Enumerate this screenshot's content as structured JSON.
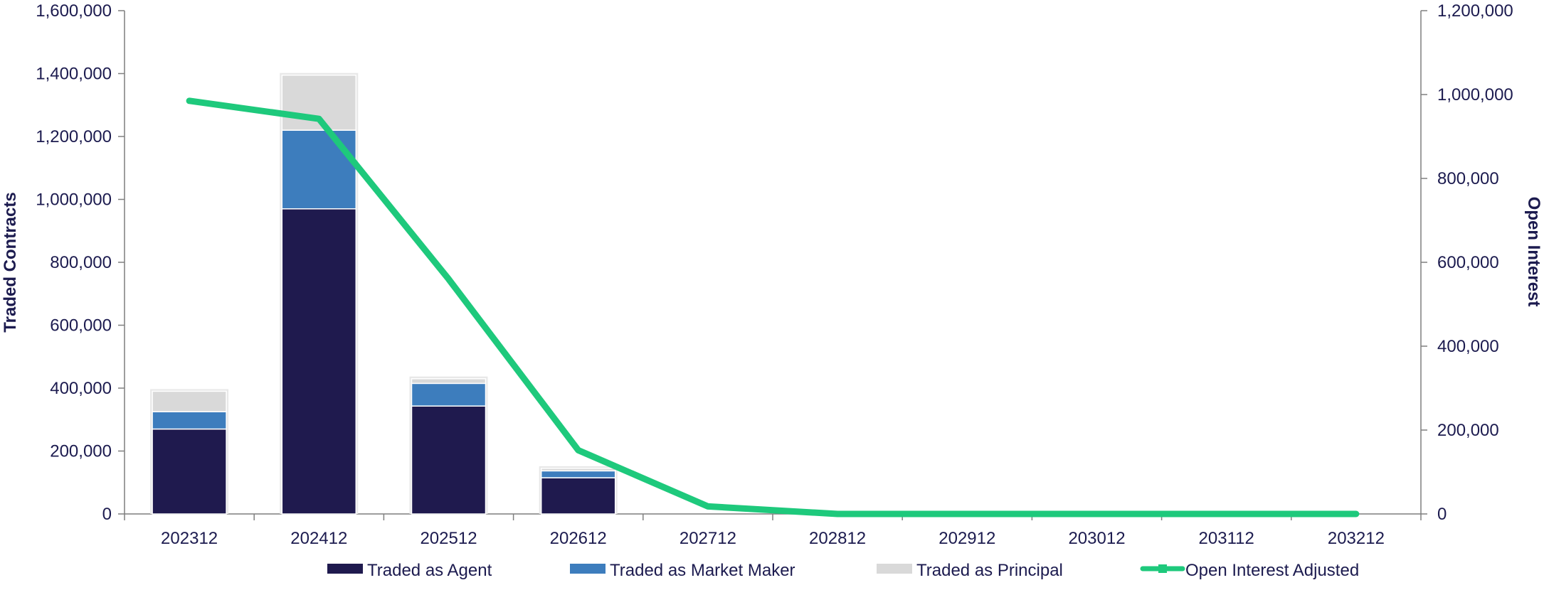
{
  "chart_data": {
    "type": "bar",
    "categories": [
      "202312",
      "202412",
      "202512",
      "202612",
      "202712",
      "202812",
      "202912",
      "203012",
      "203112",
      "203212"
    ],
    "series": [
      {
        "name": "Traded as Agent",
        "type": "bar",
        "axis": "left",
        "color": "#1f1a4e",
        "values": [
          270000,
          970000,
          343000,
          115000,
          0,
          0,
          0,
          0,
          0,
          0
        ]
      },
      {
        "name": "Traded as Market Maker",
        "type": "bar",
        "axis": "left",
        "color": "#3d7dbd",
        "values": [
          55000,
          250000,
          72000,
          22000,
          0,
          0,
          0,
          0,
          0,
          0
        ]
      },
      {
        "name": "Traded as Principal",
        "type": "bar",
        "axis": "left",
        "color": "#d9d9d9",
        "values": [
          65000,
          175000,
          15000,
          8000,
          0,
          0,
          0,
          0,
          0,
          0
        ]
      },
      {
        "name": "Open Interest Adjusted",
        "type": "line",
        "axis": "right",
        "color": "#1ec97c",
        "values": [
          985000,
          942000,
          560000,
          152000,
          18000,
          0,
          0,
          0,
          0,
          0
        ]
      }
    ],
    "ylabel": "Traded Contracts",
    "y2label": "Open Interest",
    "ylim": [
      0,
      1600000
    ],
    "y2lim": [
      0,
      1200000
    ],
    "yticks": [
      "0",
      "200,000",
      "400,000",
      "600,000",
      "800,000",
      "1,000,000",
      "1,200,000",
      "1,400,000",
      "1,600,000"
    ],
    "y2ticks": [
      "0",
      "200,000",
      "400,000",
      "600,000",
      "800,000",
      "1,000,000",
      "1,200,000"
    ],
    "grid": false,
    "legend_position": "bottom"
  }
}
